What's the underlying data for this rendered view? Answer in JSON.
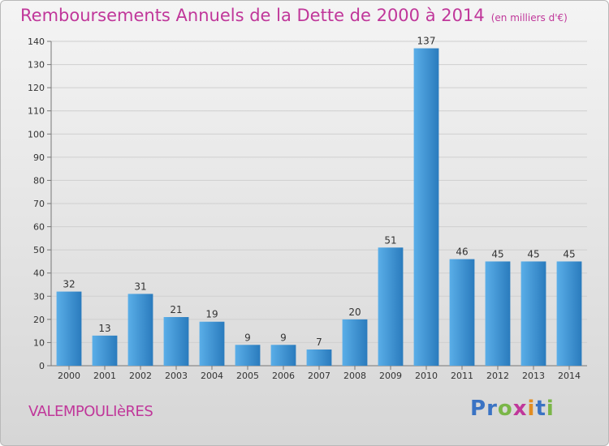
{
  "header": {
    "title": "Remboursements Annuels de la Dette de 2000 à 2014",
    "unit": "(en milliers d'€)"
  },
  "footer": {
    "commune": "VALEMPOULIèRES",
    "logo": "Proxiti"
  },
  "colors": {
    "bar_top": "#5aaee8",
    "bar_bottom": "#2a7bbd",
    "title": "#c0379a",
    "grid": "#cfcfcf"
  },
  "chart_data": {
    "type": "bar",
    "title": "Remboursements Annuels de la Dette de 2000 à 2014",
    "xlabel": "",
    "ylabel": "",
    "ylim": [
      0,
      140
    ],
    "y_ticks": [
      0,
      10,
      20,
      30,
      40,
      50,
      60,
      70,
      80,
      90,
      100,
      110,
      120,
      130,
      140
    ],
    "grid": true,
    "categories": [
      "2000",
      "2001",
      "2002",
      "2003",
      "2004",
      "2005",
      "2006",
      "2007",
      "2008",
      "2009",
      "2010",
      "2011",
      "2012",
      "2013",
      "2014"
    ],
    "values": [
      32,
      13,
      31,
      21,
      19,
      9,
      9,
      7,
      20,
      51,
      137,
      46,
      45,
      45,
      45
    ]
  }
}
